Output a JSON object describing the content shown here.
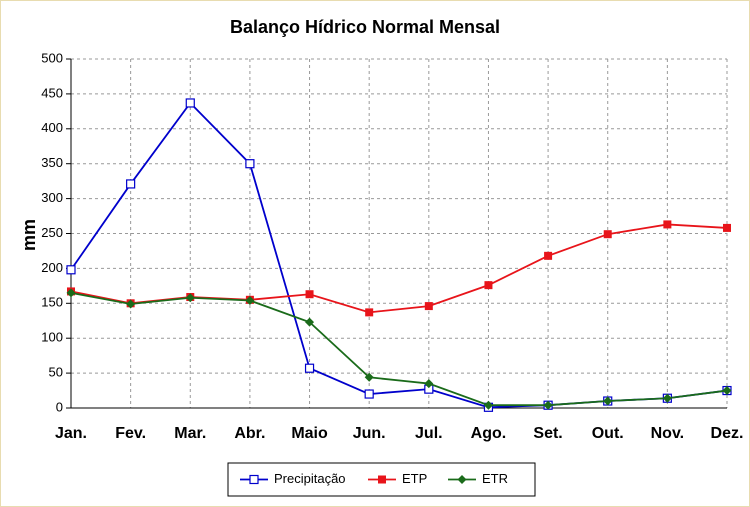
{
  "chart_data": {
    "type": "line",
    "title": "Balanço Hídrico Normal Mensal",
    "y_label": "mm",
    "categories": [
      "Jan.",
      "Fev.",
      "Mar.",
      "Abr.",
      "Maio",
      "Jun.",
      "Jul.",
      "Ago.",
      "Set.",
      "Out.",
      "Nov.",
      "Dez."
    ],
    "series": [
      {
        "name": "Precipitação",
        "color": "#0000cc",
        "marker": "open-square",
        "values": [
          198,
          321,
          437,
          350,
          57,
          20,
          27,
          1,
          4,
          10,
          14,
          25
        ]
      },
      {
        "name": "ETP",
        "color": "#e8141a",
        "marker": "square",
        "values": [
          167,
          150,
          159,
          155,
          163,
          137,
          146,
          176,
          218,
          249,
          263,
          258
        ]
      },
      {
        "name": "ETR",
        "color": "#1a6b1a",
        "marker": "diamond",
        "values": [
          165,
          149,
          158,
          154,
          123,
          44,
          35,
          4,
          4,
          10,
          14,
          25
        ]
      }
    ],
    "ylim": [
      0,
      500
    ],
    "yticks": [
      0,
      50,
      100,
      150,
      200,
      250,
      300,
      350,
      400,
      450,
      500
    ],
    "grid": true,
    "legend": "bottom"
  }
}
